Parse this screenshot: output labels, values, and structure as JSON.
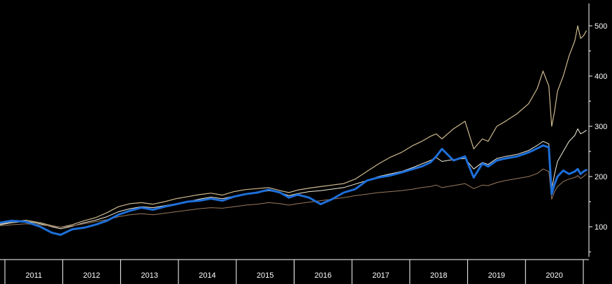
{
  "chart_data": {
    "type": "line",
    "title": "",
    "xlabel": "",
    "ylabel": "",
    "background": "#000000",
    "axis_color": "#ffffff",
    "grid": false,
    "legend": "none",
    "xlim": [
      2010.55,
      2020.72
    ],
    "ylim": [
      40,
      540
    ],
    "y_ticks": [
      100,
      200,
      300,
      400,
      500
    ],
    "y_axis_position": "right",
    "x_years": [
      "2011",
      "2012",
      "2013",
      "2014",
      "2015",
      "2016",
      "2017",
      "2018",
      "2019",
      "2020"
    ],
    "series": [
      {
        "color": "#cdb98e",
        "width": 1.2,
        "x": [
          2010.55,
          2010.75,
          2011.0,
          2011.25,
          2011.45,
          2011.6,
          2011.8,
          2012.0,
          2012.2,
          2012.4,
          2012.6,
          2012.8,
          2013.0,
          2013.2,
          2013.4,
          2013.6,
          2013.8,
          2014.0,
          2014.2,
          2014.4,
          2014.6,
          2014.8,
          2015.0,
          2015.2,
          2015.4,
          2015.55,
          2015.7,
          2015.9,
          2016.1,
          2016.3,
          2016.5,
          2016.7,
          2016.9,
          2017.1,
          2017.3,
          2017.5,
          2017.7,
          2017.85,
          2018.0,
          2018.1,
          2018.2,
          2018.4,
          2018.6,
          2018.75,
          2018.9,
          2019.0,
          2019.15,
          2019.3,
          2019.5,
          2019.7,
          2019.85,
          2019.95,
          2020.05,
          2020.1,
          2020.15,
          2020.2,
          2020.3,
          2020.4,
          2020.5,
          2020.55,
          2020.6,
          2020.65,
          2020.7
        ],
        "y": [
          105,
          110,
          113,
          108,
          102,
          99,
          104,
          112,
          118,
          128,
          140,
          146,
          148,
          145,
          150,
          156,
          160,
          164,
          167,
          163,
          170,
          174,
          176,
          178,
          172,
          168,
          173,
          177,
          180,
          183,
          186,
          195,
          210,
          225,
          238,
          248,
          262,
          270,
          280,
          285,
          275,
          295,
          310,
          255,
          275,
          270,
          300,
          310,
          325,
          345,
          375,
          410,
          380,
          300,
          330,
          370,
          400,
          440,
          470,
          500,
          475,
          480,
          490
        ]
      },
      {
        "color": "#f3efdf",
        "width": 1.0,
        "x": [
          2010.55,
          2010.75,
          2011.0,
          2011.25,
          2011.45,
          2011.6,
          2011.8,
          2012.0,
          2012.2,
          2012.4,
          2012.6,
          2012.8,
          2013.0,
          2013.2,
          2013.4,
          2013.6,
          2013.8,
          2014.0,
          2014.2,
          2014.4,
          2014.6,
          2014.8,
          2015.0,
          2015.2,
          2015.4,
          2015.55,
          2015.7,
          2015.9,
          2016.1,
          2016.3,
          2016.5,
          2016.7,
          2016.9,
          2017.1,
          2017.3,
          2017.5,
          2017.7,
          2017.85,
          2018.0,
          2018.1,
          2018.2,
          2018.4,
          2018.6,
          2018.75,
          2018.9,
          2019.0,
          2019.15,
          2019.3,
          2019.5,
          2019.7,
          2019.85,
          2019.95,
          2020.05,
          2020.1,
          2020.15,
          2020.2,
          2020.3,
          2020.4,
          2020.5,
          2020.55,
          2020.6,
          2020.65,
          2020.7
        ],
        "y": [
          104,
          108,
          111,
          106,
          100,
          96,
          101,
          108,
          113,
          120,
          130,
          136,
          140,
          138,
          142,
          146,
          150,
          155,
          159,
          156,
          161,
          165,
          168,
          172,
          168,
          162,
          166,
          170,
          172,
          175,
          178,
          185,
          192,
          200,
          205,
          210,
          218,
          225,
          232,
          238,
          230,
          234,
          236,
          215,
          228,
          224,
          236,
          240,
          244,
          252,
          262,
          270,
          265,
          175,
          205,
          230,
          250,
          270,
          282,
          295,
          285,
          288,
          292
        ]
      },
      {
        "color": "#9a7a5e",
        "width": 1.0,
        "x": [
          2010.55,
          2010.75,
          2011.0,
          2011.25,
          2011.45,
          2011.6,
          2011.8,
          2012.0,
          2012.2,
          2012.4,
          2012.6,
          2012.8,
          2013.0,
          2013.2,
          2013.4,
          2013.6,
          2013.8,
          2014.0,
          2014.2,
          2014.4,
          2014.6,
          2014.8,
          2015.0,
          2015.2,
          2015.4,
          2015.55,
          2015.7,
          2015.9,
          2016.1,
          2016.3,
          2016.5,
          2016.7,
          2016.9,
          2017.1,
          2017.3,
          2017.5,
          2017.7,
          2017.85,
          2018.0,
          2018.1,
          2018.2,
          2018.4,
          2018.6,
          2018.75,
          2018.9,
          2019.0,
          2019.15,
          2019.3,
          2019.5,
          2019.7,
          2019.85,
          2019.95,
          2020.05,
          2020.1,
          2020.15,
          2020.2,
          2020.3,
          2020.4,
          2020.5,
          2020.55,
          2020.6,
          2020.65,
          2020.7
        ],
        "y": [
          102,
          104,
          106,
          104,
          101,
          99,
          102,
          106,
          110,
          114,
          120,
          124,
          126,
          124,
          127,
          130,
          133,
          136,
          138,
          137,
          140,
          143,
          145,
          148,
          146,
          143,
          146,
          149,
          152,
          155,
          158,
          162,
          165,
          168,
          170,
          172,
          175,
          178,
          180,
          183,
          178,
          182,
          186,
          176,
          183,
          182,
          188,
          192,
          196,
          200,
          206,
          215,
          210,
          155,
          170,
          180,
          190,
          195,
          198,
          202,
          196,
          200,
          205
        ]
      },
      {
        "color": "#1e6fd9",
        "width": 3.0,
        "x": [
          2010.55,
          2010.75,
          2011.0,
          2011.25,
          2011.45,
          2011.6,
          2011.8,
          2012.0,
          2012.2,
          2012.4,
          2012.6,
          2012.8,
          2013.0,
          2013.2,
          2013.4,
          2013.6,
          2013.8,
          2014.0,
          2014.2,
          2014.4,
          2014.6,
          2014.8,
          2015.0,
          2015.2,
          2015.4,
          2015.55,
          2015.7,
          2015.9,
          2016.1,
          2016.3,
          2016.5,
          2016.7,
          2016.9,
          2017.1,
          2017.3,
          2017.5,
          2017.7,
          2017.85,
          2018.0,
          2018.1,
          2018.2,
          2018.4,
          2018.6,
          2018.75,
          2018.9,
          2019.0,
          2019.15,
          2019.3,
          2019.5,
          2019.7,
          2019.85,
          2019.95,
          2020.05,
          2020.1,
          2020.15,
          2020.2,
          2020.3,
          2020.4,
          2020.5,
          2020.55,
          2020.6,
          2020.65,
          2020.7
        ],
        "y": [
          108,
          112,
          110,
          100,
          88,
          84,
          95,
          98,
          104,
          112,
          124,
          132,
          138,
          134,
          140,
          145,
          150,
          152,
          156,
          152,
          160,
          165,
          168,
          174,
          168,
          158,
          164,
          158,
          145,
          155,
          168,
          175,
          192,
          198,
          202,
          208,
          215,
          220,
          228,
          240,
          255,
          232,
          240,
          198,
          226,
          220,
          232,
          236,
          240,
          248,
          256,
          262,
          258,
          165,
          185,
          200,
          212,
          205,
          210,
          215,
          205,
          210,
          213
        ]
      }
    ]
  }
}
